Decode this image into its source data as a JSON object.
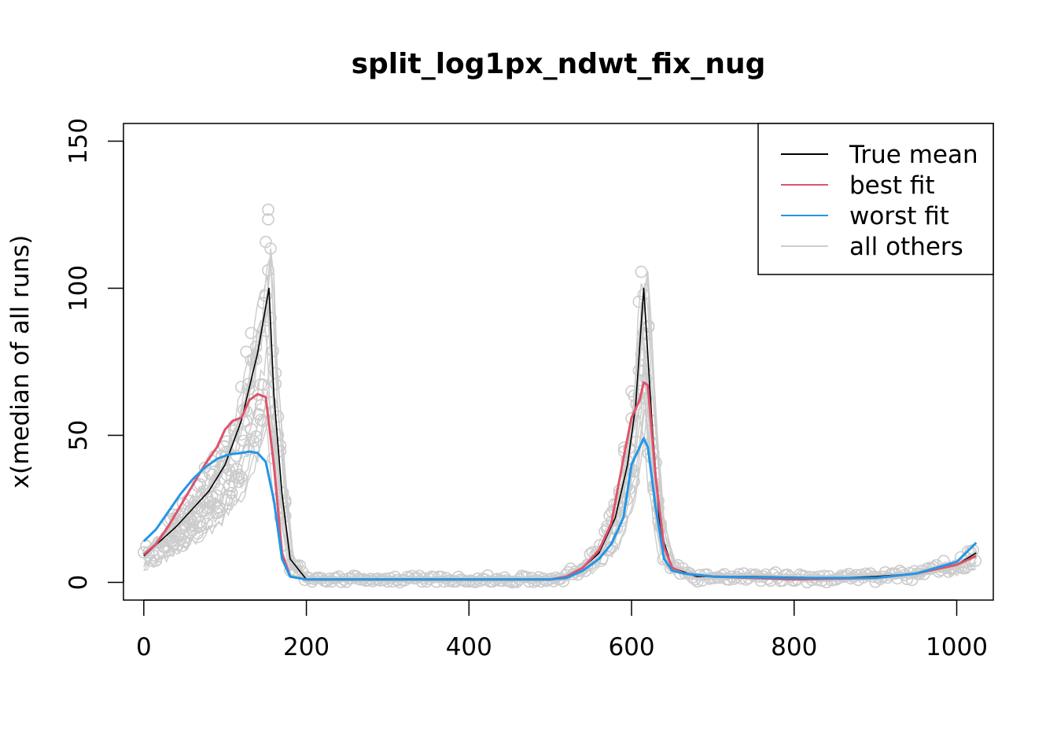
{
  "chart_data": {
    "type": "line",
    "title": "split_log1px_ndwt_fix_nug",
    "xlabel": "",
    "ylabel": "x(median of all runs)",
    "xlim": [
      -25,
      1045
    ],
    "ylim": [
      -6,
      156
    ],
    "x_ticks": [
      0,
      200,
      400,
      600,
      800,
      1000
    ],
    "y_ticks": [
      0,
      50,
      100,
      150
    ],
    "legend_position": "top-right",
    "legend": [
      {
        "label": "True mean",
        "color": "#000000"
      },
      {
        "label": "best fit",
        "color": "#DF536B"
      },
      {
        "label": "worst fit",
        "color": "#2297E6"
      },
      {
        "label": "all others",
        "color": "#CCCCCC"
      }
    ],
    "series": [
      {
        "name": "True mean",
        "color": "#000000",
        "x": [
          0,
          20,
          40,
          60,
          80,
          100,
          120,
          140,
          154,
          160,
          170,
          180,
          200,
          300,
          400,
          500,
          520,
          540,
          560,
          580,
          595,
          605,
          615,
          625,
          635,
          650,
          680,
          750,
          850,
          900,
          950,
          1000,
          1024
        ],
        "y": [
          9,
          14,
          19,
          25,
          31,
          40,
          55,
          78,
          100,
          64,
          30,
          8,
          1,
          1,
          1,
          1,
          2,
          5,
          10,
          22,
          40,
          60,
          100,
          55,
          18,
          5,
          2,
          2,
          1.5,
          2,
          3,
          6,
          10
        ]
      },
      {
        "name": "best fit",
        "color": "#DF536B",
        "x": [
          0,
          15,
          30,
          45,
          60,
          75,
          90,
          100,
          110,
          120,
          130,
          140,
          150,
          160,
          170,
          180,
          200,
          300,
          400,
          500,
          520,
          540,
          560,
          575,
          590,
          600,
          610,
          615,
          620,
          630,
          640,
          650,
          665,
          680,
          700,
          800,
          900,
          950,
          1000,
          1024
        ],
        "y": [
          9.5,
          13,
          19,
          26,
          33,
          40,
          46,
          52,
          55,
          56,
          62,
          64,
          63,
          40,
          10,
          2,
          1,
          1,
          1,
          1,
          2,
          5,
          11,
          20,
          42,
          56,
          62,
          68,
          67,
          35,
          12,
          5,
          3,
          2.5,
          2,
          1,
          1.5,
          3,
          6,
          9
        ]
      },
      {
        "name": "worst fit",
        "color": "#2297E6",
        "x": [
          0,
          15,
          30,
          45,
          60,
          75,
          90,
          105,
          120,
          130,
          140,
          150,
          160,
          170,
          180,
          200,
          300,
          400,
          500,
          520,
          540,
          560,
          575,
          590,
          600,
          610,
          615,
          620,
          630,
          640,
          650,
          665,
          700,
          800,
          900,
          950,
          1000,
          1024
        ],
        "y": [
          14,
          18,
          24,
          30,
          35,
          39,
          42,
          43.5,
          44,
          44.5,
          44,
          41,
          28,
          8,
          2,
          1,
          1,
          1,
          1,
          1.5,
          4,
          8,
          13,
          22,
          40,
          46,
          49,
          46,
          25,
          8,
          4,
          3,
          2,
          1.5,
          1.5,
          3,
          7,
          13.5
        ]
      }
    ]
  }
}
